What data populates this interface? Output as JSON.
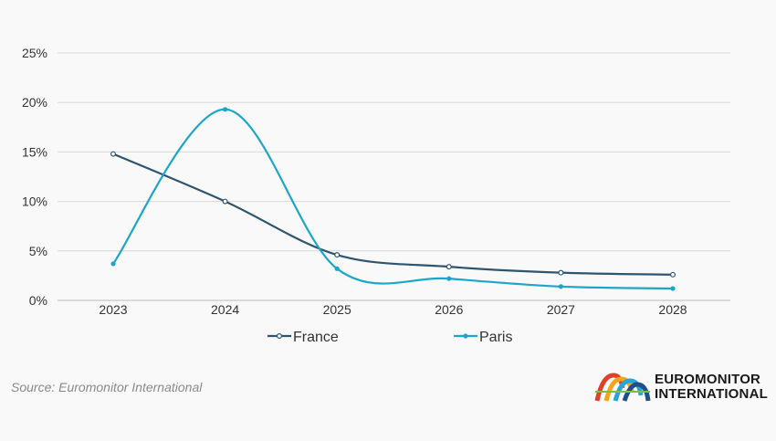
{
  "chart_data": {
    "type": "line",
    "categories": [
      "2023",
      "2024",
      "2025",
      "2026",
      "2027",
      "2028"
    ],
    "series": [
      {
        "name": "France",
        "color": "#2e5570",
        "values": [
          14.8,
          10.0,
          4.6,
          3.4,
          2.8,
          2.6
        ]
      },
      {
        "name": "Paris",
        "color": "#1ca6c9",
        "values": [
          3.7,
          19.3,
          3.2,
          2.2,
          1.4,
          1.2
        ]
      }
    ],
    "ylim": [
      0,
      25
    ],
    "yticks": [
      "0%",
      "5%",
      "10%",
      "15%",
      "20%",
      "25%"
    ],
    "title": "",
    "xlabel": "",
    "ylabel": "",
    "legend": "bottom-center"
  },
  "footer": {
    "source": "Source: Euromonitor International",
    "logo_line1": "EUROMONITOR",
    "logo_line2": "INTERNATIONAL"
  }
}
